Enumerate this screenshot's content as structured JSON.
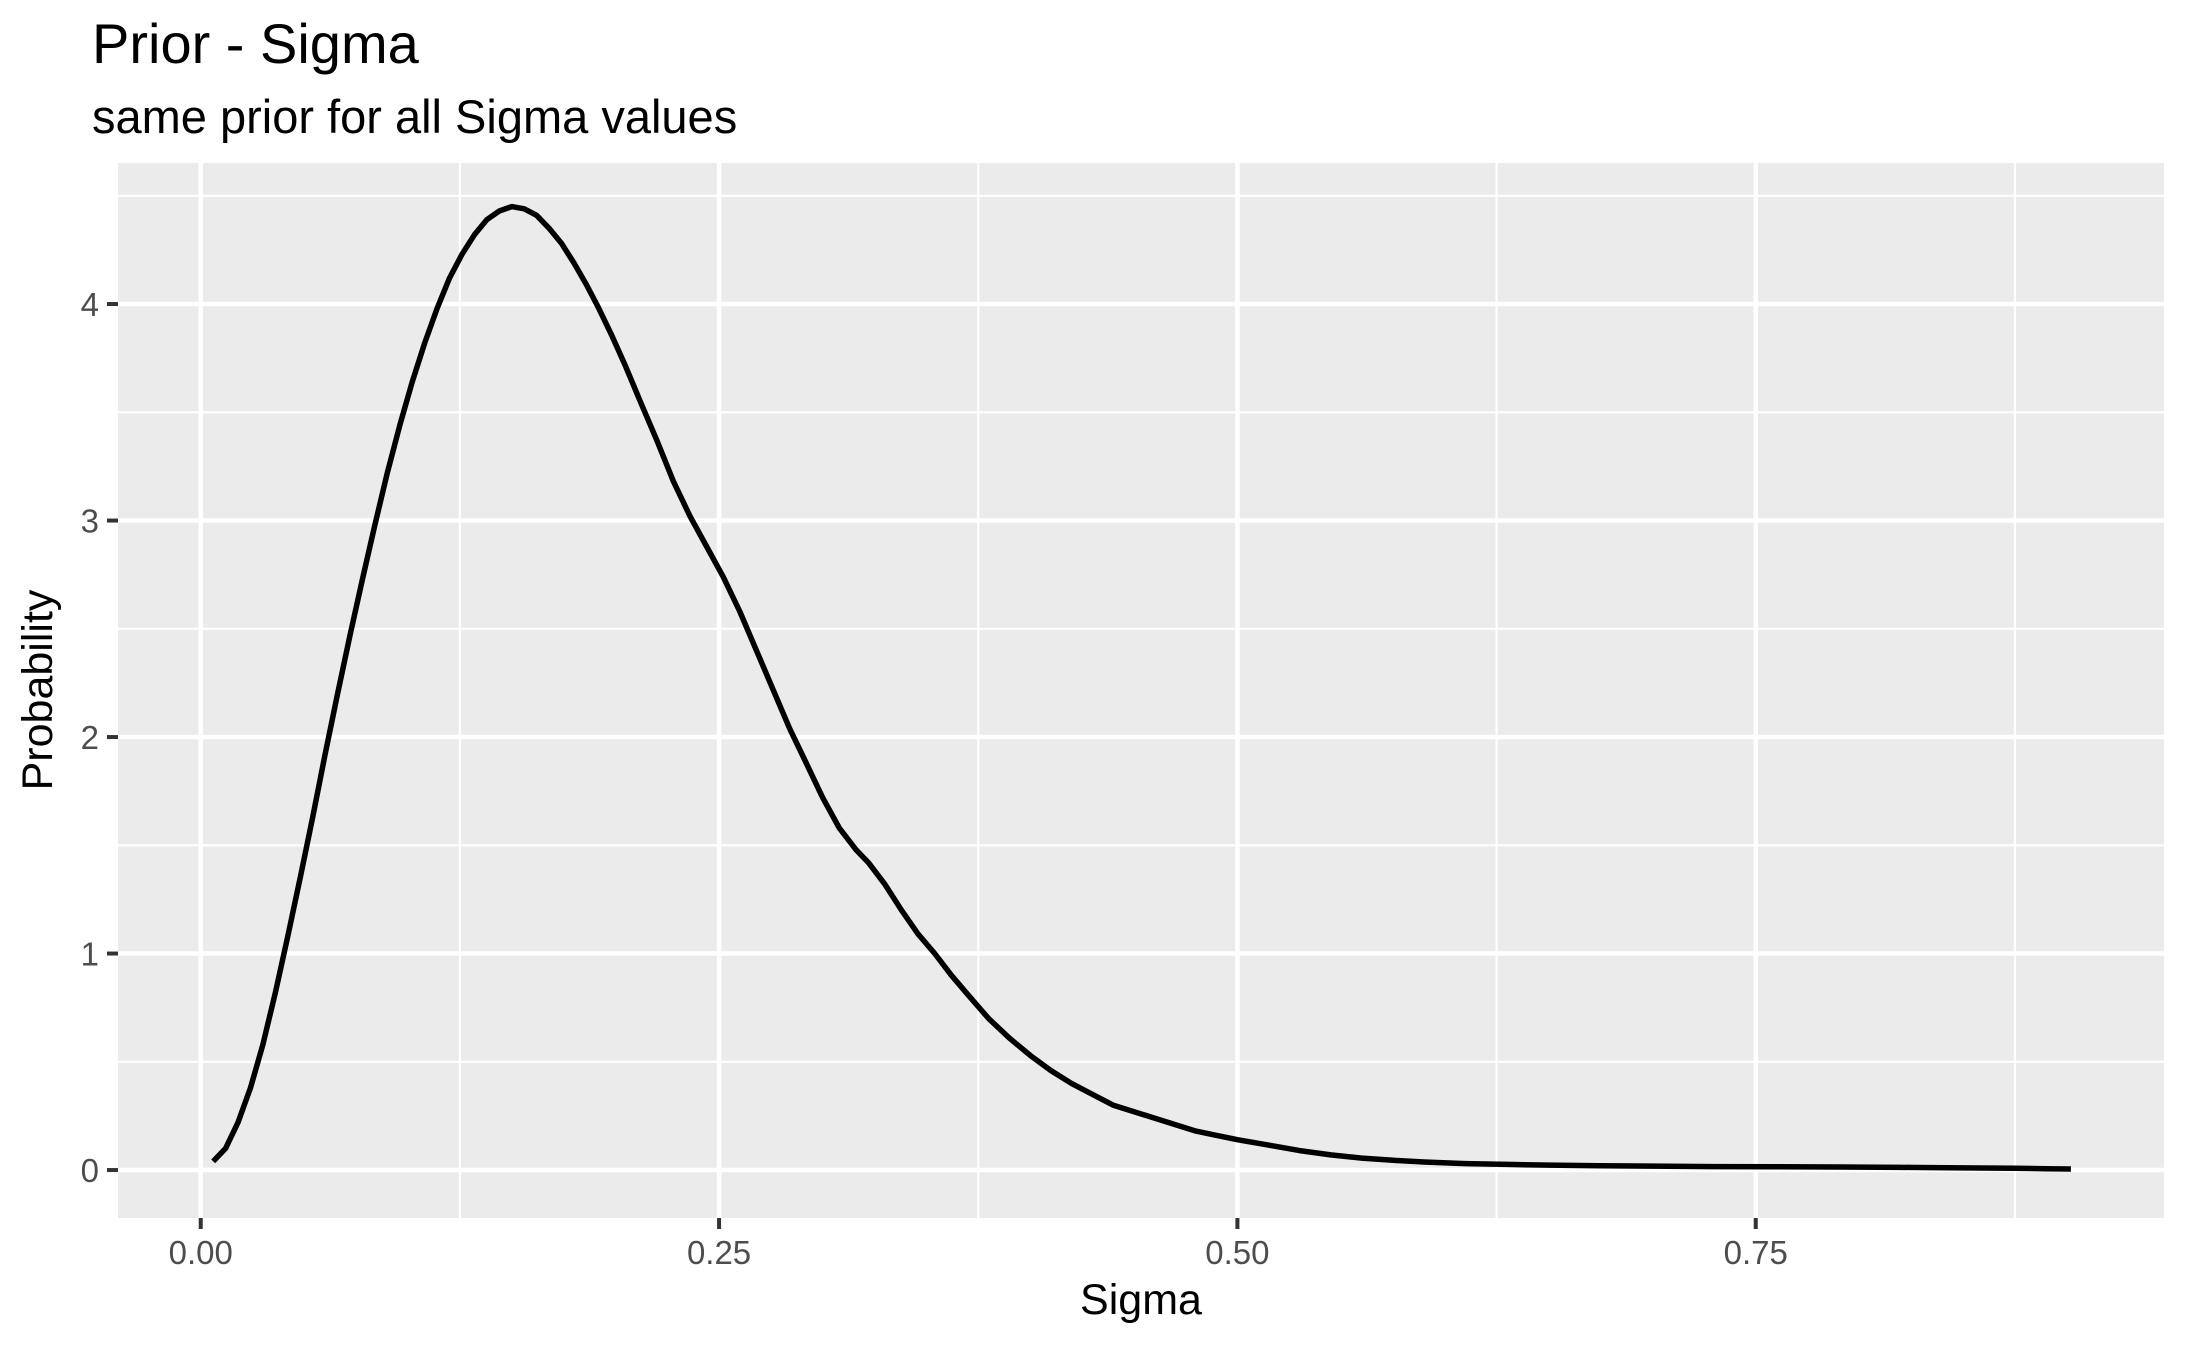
{
  "title": "Prior - Sigma",
  "subtitle": "same prior for all Sigma values",
  "colors": {
    "panel_background": "#EBEBEB",
    "grid_line": "#FFFFFF",
    "curve": "#000000",
    "tick_mark": "#333333",
    "tick_label": "#4D4D4D",
    "title_text": "#000000",
    "outer_background": "#FFFFFF"
  },
  "chart_data": {
    "type": "line",
    "title": "Prior - Sigma",
    "subtitle": "same prior for all Sigma values",
    "xlabel": "Sigma",
    "ylabel": "Probability",
    "legend": "none",
    "grid": "major+minor",
    "xlim": [
      -0.0399,
      0.9469
    ],
    "ylim": [
      -0.2215,
      4.6515
    ],
    "x_ticks": {
      "values": [
        0,
        0.25,
        0.5,
        0.75
      ],
      "labels": [
        "0.00",
        "0.25",
        "0.50",
        "0.75"
      ]
    },
    "y_ticks": {
      "values": [
        0,
        1,
        2,
        3,
        4
      ],
      "labels": [
        "0",
        "1",
        "2",
        "3",
        "4"
      ]
    },
    "x_minor": [
      0.125,
      0.375,
      0.625,
      0.875
    ],
    "y_minor": [
      0.5,
      1.5,
      2.5,
      3.5,
      4.5
    ],
    "series": [
      {
        "name": "prior-density",
        "peak": {
          "x": 0.15,
          "y": 4.45
        },
        "points": [
          [
            0.006,
            0.04
          ],
          [
            0.012,
            0.1
          ],
          [
            0.018,
            0.22
          ],
          [
            0.024,
            0.38
          ],
          [
            0.03,
            0.58
          ],
          [
            0.036,
            0.82
          ],
          [
            0.042,
            1.08
          ],
          [
            0.048,
            1.35
          ],
          [
            0.054,
            1.63
          ],
          [
            0.06,
            1.92
          ],
          [
            0.066,
            2.2
          ],
          [
            0.072,
            2.47
          ],
          [
            0.078,
            2.73
          ],
          [
            0.084,
            2.98
          ],
          [
            0.09,
            3.22
          ],
          [
            0.096,
            3.44
          ],
          [
            0.102,
            3.64
          ],
          [
            0.108,
            3.82
          ],
          [
            0.114,
            3.98
          ],
          [
            0.12,
            4.12
          ],
          [
            0.126,
            4.23
          ],
          [
            0.132,
            4.32
          ],
          [
            0.138,
            4.39
          ],
          [
            0.144,
            4.43
          ],
          [
            0.15,
            4.45
          ],
          [
            0.156,
            4.44
          ],
          [
            0.162,
            4.41
          ],
          [
            0.168,
            4.35
          ],
          [
            0.174,
            4.28
          ],
          [
            0.18,
            4.19
          ],
          [
            0.186,
            4.09
          ],
          [
            0.192,
            3.98
          ],
          [
            0.198,
            3.86
          ],
          [
            0.205,
            3.71
          ],
          [
            0.212,
            3.55
          ],
          [
            0.22,
            3.37
          ],
          [
            0.228,
            3.18
          ],
          [
            0.236,
            3.02
          ],
          [
            0.244,
            2.88
          ],
          [
            0.252,
            2.74
          ],
          [
            0.26,
            2.58
          ],
          [
            0.268,
            2.4
          ],
          [
            0.276,
            2.22
          ],
          [
            0.284,
            2.04
          ],
          [
            0.292,
            1.88
          ],
          [
            0.3,
            1.72
          ],
          [
            0.308,
            1.58
          ],
          [
            0.316,
            1.48
          ],
          [
            0.322,
            1.42
          ],
          [
            0.33,
            1.32
          ],
          [
            0.338,
            1.2
          ],
          [
            0.346,
            1.09
          ],
          [
            0.354,
            1.0
          ],
          [
            0.362,
            0.9
          ],
          [
            0.37,
            0.81
          ],
          [
            0.38,
            0.7
          ],
          [
            0.39,
            0.61
          ],
          [
            0.4,
            0.53
          ],
          [
            0.41,
            0.46
          ],
          [
            0.42,
            0.4
          ],
          [
            0.43,
            0.35
          ],
          [
            0.44,
            0.3
          ],
          [
            0.45,
            0.27
          ],
          [
            0.46,
            0.24
          ],
          [
            0.47,
            0.21
          ],
          [
            0.48,
            0.18
          ],
          [
            0.49,
            0.16
          ],
          [
            0.5,
            0.14
          ],
          [
            0.515,
            0.115
          ],
          [
            0.53,
            0.09
          ],
          [
            0.545,
            0.07
          ],
          [
            0.56,
            0.055
          ],
          [
            0.575,
            0.045
          ],
          [
            0.59,
            0.037
          ],
          [
            0.61,
            0.03
          ],
          [
            0.63,
            0.026
          ],
          [
            0.65,
            0.023
          ],
          [
            0.675,
            0.02
          ],
          [
            0.7,
            0.018
          ],
          [
            0.73,
            0.016
          ],
          [
            0.76,
            0.015
          ],
          [
            0.79,
            0.014
          ],
          [
            0.82,
            0.012
          ],
          [
            0.85,
            0.01
          ],
          [
            0.875,
            0.008
          ],
          [
            0.89,
            0.006
          ],
          [
            0.902,
            0.005
          ]
        ]
      }
    ]
  }
}
